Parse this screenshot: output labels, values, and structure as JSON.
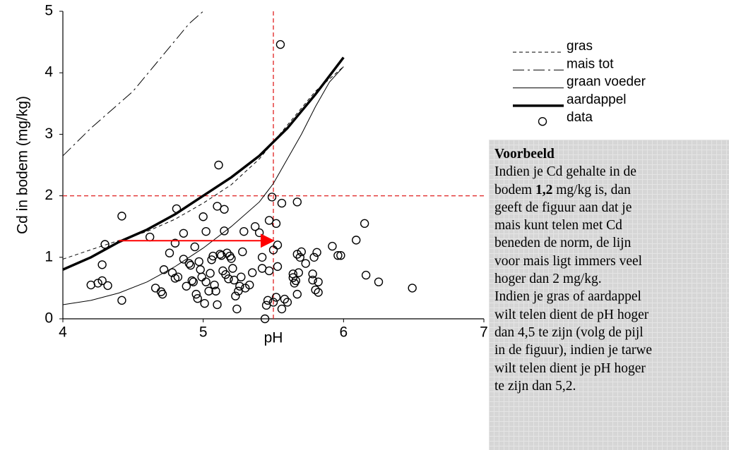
{
  "chart_data": {
    "type": "line-scatter",
    "xlabel": "pH",
    "ylabel": "Cd in bodem (mg/kg)",
    "xlim": [
      4,
      7
    ],
    "xticks": [
      4,
      5,
      6,
      7
    ],
    "ylim": [
      0,
      5
    ],
    "yticks": [
      0,
      1,
      2,
      3,
      4,
      5
    ],
    "series": [
      {
        "name": "gras",
        "kind": "line",
        "linestyle": "dashed",
        "color": "#000000",
        "x": [
          4.0,
          4.3,
          4.6,
          4.8,
          5.0,
          5.2,
          5.4,
          5.6,
          5.8,
          6.0
        ],
        "values": [
          0.97,
          1.2,
          1.42,
          1.62,
          1.88,
          2.18,
          2.6,
          3.15,
          3.7,
          4.1
        ]
      },
      {
        "name": "mais tot",
        "kind": "line",
        "linestyle": "dashdot",
        "color": "#000000",
        "x": [
          4.0,
          4.2,
          4.5,
          4.7,
          4.9,
          5.0
        ],
        "values": [
          2.65,
          3.1,
          3.7,
          4.25,
          4.8,
          5.0
        ]
      },
      {
        "name": "graan voeder",
        "kind": "line",
        "linestyle": "solid",
        "color": "#000000",
        "x": [
          4.0,
          4.2,
          4.4,
          4.6,
          4.8,
          5.0,
          5.2,
          5.4,
          5.5,
          5.6,
          5.7,
          5.8,
          5.9,
          6.0
        ],
        "values": [
          0.23,
          0.3,
          0.42,
          0.6,
          0.85,
          1.15,
          1.5,
          1.9,
          2.2,
          2.6,
          3.0,
          3.45,
          3.85,
          4.1
        ]
      },
      {
        "name": "aardappel",
        "kind": "line",
        "linestyle": "bold",
        "color": "#000000",
        "x": [
          4.0,
          4.2,
          4.4,
          4.6,
          4.8,
          5.0,
          5.2,
          5.4,
          5.6,
          5.8,
          6.0
        ],
        "values": [
          0.8,
          1.0,
          1.25,
          1.45,
          1.7,
          2.0,
          2.3,
          2.65,
          3.1,
          3.65,
          4.25
        ]
      },
      {
        "name": "data",
        "kind": "scatter",
        "color": "#000000",
        "x": [
          4.2,
          4.25,
          4.28,
          4.3,
          4.28,
          4.32,
          4.42,
          4.42,
          4.62,
          4.66,
          4.7,
          4.71,
          4.72,
          4.76,
          4.78,
          4.8,
          4.81,
          4.8,
          4.82,
          4.86,
          4.86,
          4.88,
          4.9,
          4.91,
          4.92,
          4.93,
          4.94,
          4.95,
          4.96,
          4.97,
          4.98,
          4.99,
          5.0,
          5.01,
          5.02,
          5.02,
          5.04,
          5.05,
          5.06,
          5.07,
          5.08,
          5.09,
          5.1,
          5.1,
          5.11,
          5.12,
          5.13,
          5.14,
          5.15,
          5.15,
          5.16,
          5.17,
          5.18,
          5.19,
          5.2,
          5.21,
          5.22,
          5.23,
          5.24,
          5.25,
          5.26,
          5.27,
          5.28,
          5.29,
          5.3,
          5.33,
          5.35,
          5.37,
          5.4,
          5.42,
          5.42,
          5.44,
          5.45,
          5.46,
          5.47,
          5.47,
          5.49,
          5.5,
          5.5,
          5.52,
          5.52,
          5.53,
          5.53,
          5.55,
          5.56,
          5.56,
          5.58,
          5.6,
          5.64,
          5.64,
          5.65,
          5.66,
          5.67,
          5.67,
          5.67,
          5.68,
          5.69,
          5.7,
          5.73,
          5.78,
          5.78,
          5.79,
          5.8,
          5.81,
          5.82,
          5.82,
          5.92,
          5.96,
          5.98,
          6.09,
          6.15,
          6.16,
          6.25,
          6.49
        ],
        "values": [
          0.55,
          0.58,
          0.88,
          1.21,
          0.62,
          0.54,
          1.67,
          0.3,
          1.33,
          0.5,
          0.44,
          0.4,
          0.8,
          1.07,
          0.75,
          1.23,
          1.79,
          0.66,
          0.68,
          0.97,
          1.39,
          0.53,
          0.9,
          0.87,
          0.62,
          0.6,
          1.17,
          0.4,
          0.33,
          0.93,
          0.8,
          0.68,
          1.66,
          0.25,
          0.6,
          1.42,
          0.45,
          0.74,
          0.96,
          1.02,
          0.55,
          0.45,
          1.83,
          0.23,
          2.5,
          1.05,
          1.03,
          0.78,
          1.78,
          1.43,
          0.72,
          1.07,
          0.65,
          1.02,
          0.98,
          0.82,
          0.63,
          0.37,
          0.16,
          0.45,
          0.53,
          0.68,
          1.09,
          1.42,
          0.5,
          0.55,
          0.75,
          1.5,
          1.4,
          1.0,
          0.82,
          0.0,
          0.22,
          0.3,
          1.6,
          0.78,
          1.98,
          0.27,
          1.12,
          1.55,
          0.35,
          1.2,
          0.85,
          4.46,
          1.88,
          0.16,
          0.32,
          0.27,
          0.73,
          0.67,
          0.58,
          0.62,
          1.05,
          0.4,
          1.9,
          0.75,
          1.0,
          1.09,
          0.9,
          0.73,
          0.63,
          1.0,
          0.47,
          1.08,
          0.6,
          0.43,
          1.18,
          1.03,
          1.03,
          1.28,
          1.55,
          0.71,
          0.6,
          0.5
        ]
      }
    ],
    "reference_lines": [
      {
        "axis": "x",
        "value": 5.5,
        "color": "#e02020"
      },
      {
        "axis": "y",
        "value": 2,
        "color": "#e02020"
      }
    ],
    "arrow": {
      "x": [
        4.4,
        5.5
      ],
      "y": 1.27,
      "color": "#ff0000"
    }
  },
  "text_box": {
    "title": "Voorbeeld",
    "lines": [
      "Indien je Cd gehalte in de",
      {
        "before": "bodem",
        "bold": "1,2",
        "after": "mg/kg is, dan"
      },
      "geeft de figuur aan dat je",
      "mais kunt telen met Cd",
      "beneden de norm, de lijn",
      "voor mais ligt immers veel",
      "hoger dan 2 mg/kg.",
      "Indien je gras of aardappel",
      "wilt telen dient de pH hoger",
      "dan 4,5 te zijn (volg de pijl",
      "in de figuur), indien je tarwe",
      "wilt telen dient je pH hoger",
      "te zijn dan 5,2."
    ]
  }
}
